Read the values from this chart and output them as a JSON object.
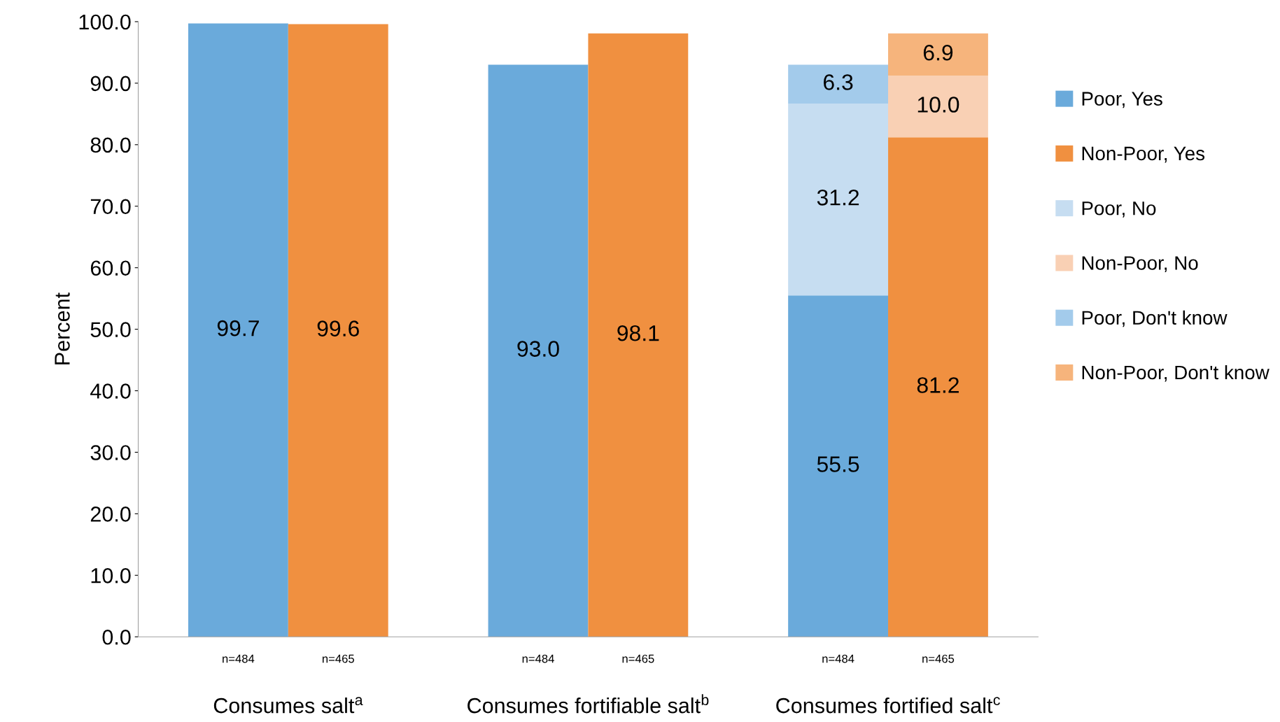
{
  "chart_data": {
    "type": "bar",
    "stacked": true,
    "ylabel": "Percent",
    "categories": [
      "n=484",
      "n=465",
      "n=484",
      "n=465",
      "n=484",
      "n=465"
    ],
    "series": [
      {
        "name": "Poor, Yes",
        "color": "#6aaadb",
        "values": [
          99.7,
          null,
          93.0,
          null,
          55.5,
          null
        ],
        "value_labels": [
          "99.7",
          null,
          "93.0",
          null,
          "55.5",
          null
        ]
      },
      {
        "name": "Non-Poor, Yes",
        "color": "#f09040",
        "values": [
          null,
          99.6,
          null,
          98.1,
          null,
          81.2
        ],
        "value_labels": [
          null,
          "99.6",
          null,
          "98.1",
          null,
          "81.2"
        ]
      },
      {
        "name": "Poor, No",
        "color": "#c6ddf1",
        "values": [
          null,
          null,
          null,
          null,
          31.2,
          null
        ],
        "value_labels": [
          null,
          null,
          null,
          null,
          "31.2",
          null
        ]
      },
      {
        "name": "Non-Poor, No",
        "color": "#f9d0b4",
        "values": [
          null,
          null,
          null,
          null,
          null,
          10.0
        ],
        "value_labels": [
          null,
          null,
          null,
          null,
          null,
          "10.0"
        ]
      },
      {
        "name": "Poor, Don't know",
        "color": "#a3cbeb",
        "values": [
          null,
          null,
          null,
          null,
          6.3,
          null
        ],
        "value_labels": [
          null,
          null,
          null,
          null,
          "6.3",
          null
        ]
      },
      {
        "name": "Non-Poor, Don't know",
        "color": "#f6b47c",
        "values": [
          null,
          null,
          null,
          null,
          null,
          6.9
        ],
        "value_labels": [
          null,
          null,
          null,
          null,
          null,
          "6.9"
        ]
      }
    ],
    "annotations": [
      "Consumes salt$^{a}$",
      "Consumes fortifiable salt$^{b}$",
      "Consumes fortified salt$^{c}$"
    ],
    "ylim": [
      0,
      100
    ],
    "yticks": [
      {
        "value": 0,
        "label": "0.0"
      },
      {
        "value": 10,
        "label": "10.0"
      },
      {
        "value": 20,
        "label": "20.0"
      },
      {
        "value": 30,
        "label": "30.0"
      },
      {
        "value": 40,
        "label": "40.0"
      },
      {
        "value": 50,
        "label": "50.0"
      },
      {
        "value": 60,
        "label": "60.0"
      },
      {
        "value": 70,
        "label": "70.0"
      },
      {
        "value": 80,
        "label": "80.0"
      },
      {
        "value": 90,
        "label": "90.0"
      },
      {
        "value": 100,
        "label": "100.0"
      }
    ],
    "grid": false,
    "legend": "right"
  }
}
